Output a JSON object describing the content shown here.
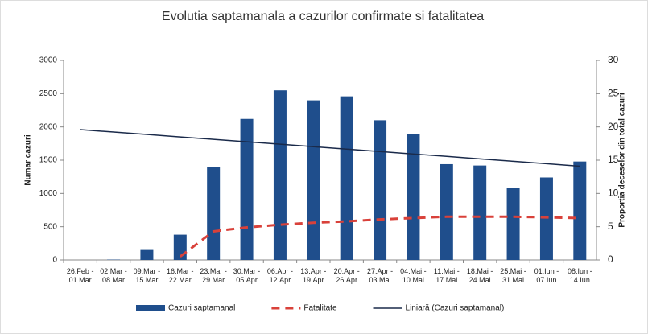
{
  "chart_data": {
    "type": "bar",
    "title": "Evolutia saptamanala a cazurilor confirmate si fatalitatea",
    "y_label": "Numar cazuri",
    "y2_label": "Proportia deceselor din total cazuri",
    "categories": [
      "26.Feb - 01.Mar",
      "02.Mar - 08.Mar",
      "09.Mar - 15.Mar",
      "16.Mar - 22.Mar",
      "23.Mar - 29.Mar",
      "30.Mar - 05.Apr",
      "06.Apr - 12.Apr",
      "13.Apr - 19.Apr",
      "20.Apr - 26.Apr",
      "27.Apr - 03.Mai",
      "04.Mai - 10.Mai",
      "11.Mai - 17.Mai",
      "18.Mai - 24.Mai",
      "25.Mai - 31.Mai",
      "01.Iun - 07.Iun",
      "08.Iun - 14.Iun"
    ],
    "series": [
      {
        "name": "Cazuri saptamanal",
        "type": "bar",
        "color": "#1f4e8c",
        "values": [
          0,
          5,
          150,
          380,
          1400,
          2120,
          2550,
          2400,
          2460,
          2100,
          1890,
          1440,
          1420,
          1080,
          1240,
          1480
        ]
      },
      {
        "name": "Fatalitate",
        "type": "line",
        "dashed": true,
        "axis": "y2",
        "color": "#d9413a",
        "values": [
          null,
          null,
          null,
          0.5,
          4.3,
          4.9,
          5.3,
          5.6,
          5.8,
          6.1,
          6.3,
          6.5,
          6.5,
          6.5,
          6.4,
          6.3
        ]
      },
      {
        "name": "Liniară (Cazuri saptamanal)",
        "type": "line",
        "color": "#1a2a4a",
        "values": [
          1960,
          1923,
          1887,
          1850,
          1813,
          1777,
          1740,
          1703,
          1667,
          1630,
          1593,
          1557,
          1520,
          1483,
          1447,
          1410
        ]
      }
    ],
    "ylim": [
      0,
      3000
    ],
    "yticks": [
      0,
      500,
      1000,
      1500,
      2000,
      2500,
      3000
    ],
    "y2lim": [
      0,
      30
    ],
    "y2ticks": [
      0,
      5,
      10,
      15,
      20,
      25,
      30
    ],
    "legend": "bottom"
  }
}
